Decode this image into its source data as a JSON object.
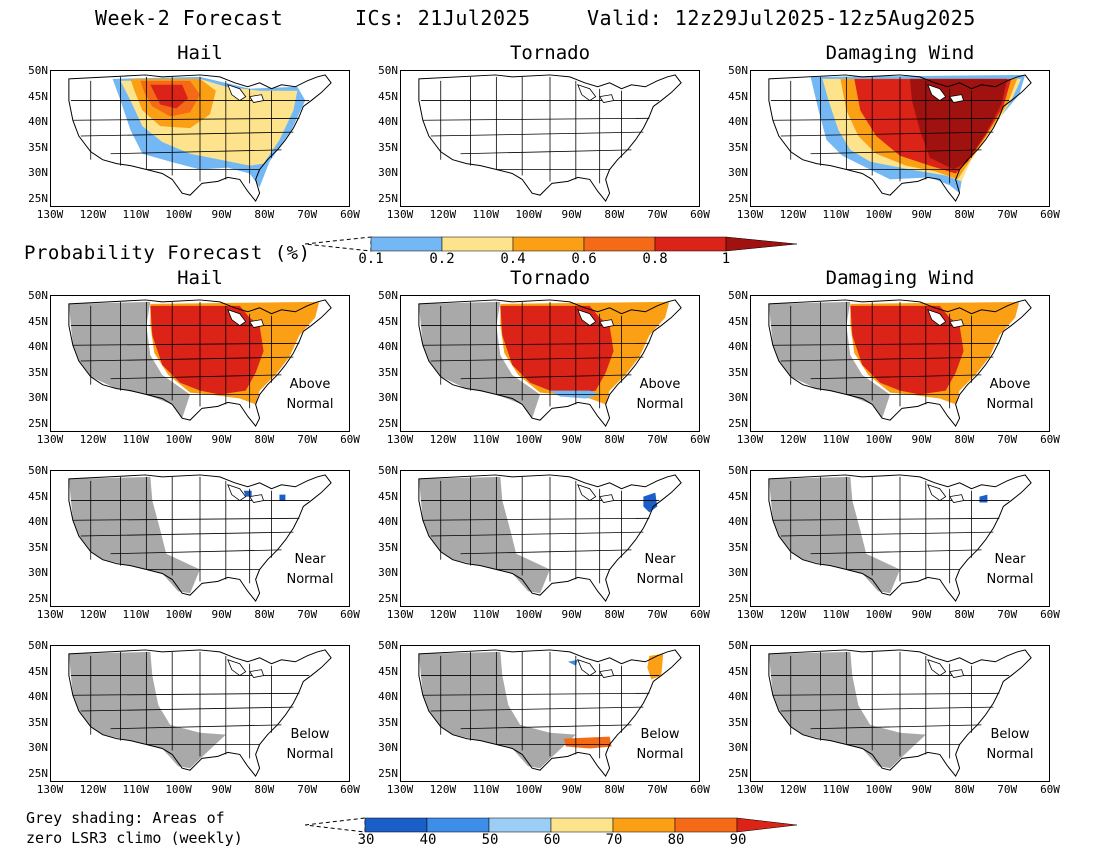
{
  "header": {
    "title": "Week-2 Forecast",
    "ics": "ICs: 21Jul2025",
    "valid": "Valid: 12z29Jul2025-12z5Aug2025"
  },
  "columns": [
    "Hail",
    "Tornado",
    "Damaging Wind"
  ],
  "prob_legend": {
    "label": "Probability Forecast (%)",
    "ticks": [
      "0.1",
      "0.2",
      "0.4",
      "0.6",
      "0.8",
      "1"
    ],
    "colors": [
      "#73b8f5",
      "#fce38c",
      "#fba014",
      "#f46a16",
      "#dc2318",
      "#a0120f"
    ]
  },
  "category_labels": [
    [
      "Above",
      "Normal"
    ],
    [
      "Near",
      "Normal"
    ],
    [
      "Below",
      "Normal"
    ]
  ],
  "pct_legend": {
    "ticks": [
      "30",
      "40",
      "50",
      "60",
      "70",
      "80",
      "90"
    ],
    "colors": [
      "#1a5fc8",
      "#3c8ee8",
      "#9ccdf5",
      "#fce38c",
      "#fba014",
      "#f46a16",
      "#dc2318"
    ]
  },
  "axis": {
    "lat_labels": [
      "50N",
      "45N",
      "40N",
      "35N",
      "30N",
      "25N"
    ],
    "lon_labels": [
      "130W",
      "120W",
      "110W",
      "100W",
      "90W",
      "80W",
      "70W",
      "60W"
    ]
  },
  "footnote": {
    "line1": "Grey shading: Areas of",
    "line2": "zero LSR3 climo (weekly)"
  },
  "colors": {
    "grey": "#a9a9a9",
    "outline": "#000000"
  }
}
